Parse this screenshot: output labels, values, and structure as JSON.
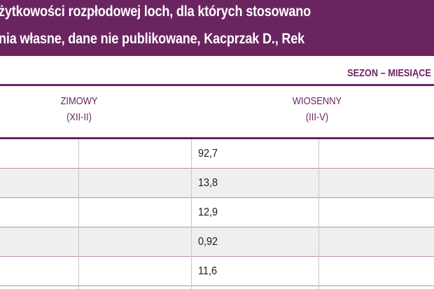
{
  "title": {
    "line1": "żytkowości rozpłodowej loch, dla których stosowano",
    "line2": "nia własne, dane nie publikowane, Kacprzak D., Rek"
  },
  "season_caption": "SEZON – MIESIĄCE",
  "columns": [
    {
      "name": "ZIMOWY",
      "months": "(XII-II)"
    },
    {
      "name": "WIOSENNY",
      "months": "(III-V)"
    }
  ],
  "rows": [
    {
      "value": "92,7"
    },
    {
      "value": "13,8"
    },
    {
      "value": "12,9"
    },
    {
      "value": "0,92"
    },
    {
      "value": "11,6"
    }
  ],
  "colors": {
    "accent": "#6a2561",
    "row_shade": "#f0eff0"
  }
}
